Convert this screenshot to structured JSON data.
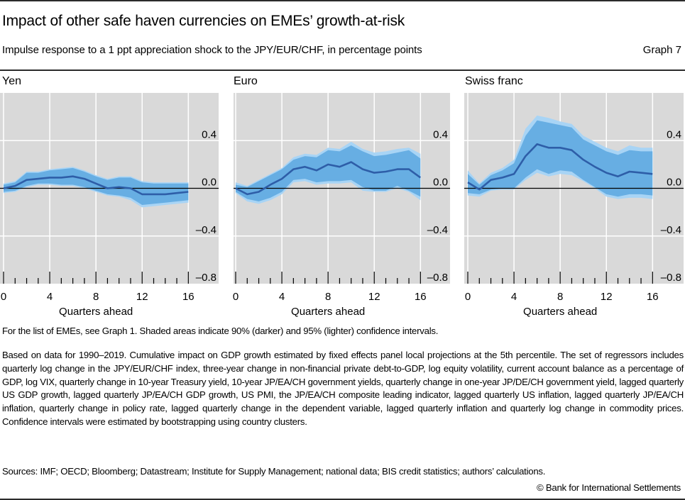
{
  "header": {
    "title": "Impact of other safe haven currencies on EMEs’ growth-at-risk",
    "subtitle": "Impulse response to a 1 ppt appreciation shock to the JPY/EUR/CHF, in percentage points",
    "graph_number": "Graph 7"
  },
  "colors": {
    "plot_background": "#d9d9d9",
    "gridline": "#ffffff",
    "band_95": "#a8d4f5",
    "band_90": "#67aee3",
    "central_line": "#2e5ea8",
    "zero_line": "#000000"
  },
  "chart_data": [
    {
      "type": "area",
      "title": "Yen",
      "xlabel": "Quarters ahead",
      "ylabel": "",
      "x": [
        0,
        1,
        2,
        3,
        4,
        5,
        6,
        7,
        8,
        9,
        10,
        11,
        12,
        13,
        14,
        15,
        16
      ],
      "xticks": [
        0,
        4,
        8,
        12,
        16
      ],
      "xtick_labels": [
        "0",
        "4",
        "8",
        "12",
        "16"
      ],
      "xlim": [
        0,
        19
      ],
      "ylim": [
        -0.8,
        0.8
      ],
      "yticks": [
        0.4,
        0.0,
        -0.4,
        -0.8
      ],
      "ytick_labels": [
        "0.4",
        "0.0",
        "–0.4",
        "–0.8"
      ],
      "ytick_side": "right",
      "grid": true,
      "series": [
        {
          "name": "Central estimate",
          "values": [
            0.0,
            0.02,
            0.07,
            0.08,
            0.09,
            0.09,
            0.1,
            0.08,
            0.04,
            0.0,
            0.01,
            0.0,
            -0.05,
            -0.05,
            -0.05,
            -0.04,
            -0.03
          ]
        },
        {
          "name": "90% CI upper",
          "values": [
            0.03,
            0.05,
            0.13,
            0.13,
            0.15,
            0.16,
            0.17,
            0.14,
            0.1,
            0.07,
            0.09,
            0.09,
            0.05,
            0.04,
            0.04,
            0.04,
            0.04
          ]
        },
        {
          "name": "90% CI lower",
          "values": [
            -0.03,
            -0.02,
            0.02,
            0.04,
            0.04,
            0.03,
            0.03,
            0.01,
            -0.02,
            -0.05,
            -0.06,
            -0.08,
            -0.14,
            -0.13,
            -0.12,
            -0.11,
            -0.1
          ]
        },
        {
          "name": "95% CI upper",
          "values": [
            0.04,
            0.06,
            0.14,
            0.14,
            0.16,
            0.17,
            0.18,
            0.15,
            0.11,
            0.08,
            0.1,
            0.1,
            0.06,
            0.05,
            0.05,
            0.05,
            0.05
          ]
        },
        {
          "name": "95% CI lower",
          "values": [
            -0.04,
            -0.03,
            0.01,
            0.03,
            0.03,
            0.02,
            0.02,
            0.0,
            -0.03,
            -0.06,
            -0.07,
            -0.1,
            -0.16,
            -0.15,
            -0.14,
            -0.13,
            -0.12
          ]
        }
      ]
    },
    {
      "type": "area",
      "title": "Euro",
      "xlabel": "Quarters ahead",
      "ylabel": "",
      "x": [
        0,
        1,
        2,
        3,
        4,
        5,
        6,
        7,
        8,
        9,
        10,
        11,
        12,
        13,
        14,
        15,
        16
      ],
      "xticks": [
        0,
        4,
        8,
        12,
        16
      ],
      "xtick_labels": [
        "0",
        "4",
        "8",
        "12",
        "16"
      ],
      "xlim": [
        0,
        19
      ],
      "ylim": [
        -0.8,
        0.8
      ],
      "yticks": [
        0.4,
        0.0,
        -0.4,
        -0.8
      ],
      "ytick_labels": [
        "0.4",
        "0.0",
        "–0.4",
        "–0.8"
      ],
      "ytick_side": "right",
      "grid": true,
      "series": [
        {
          "name": "Central estimate",
          "values": [
            0.0,
            -0.05,
            -0.03,
            0.03,
            0.08,
            0.16,
            0.18,
            0.15,
            0.2,
            0.18,
            0.22,
            0.16,
            0.13,
            0.14,
            0.16,
            0.16,
            0.09
          ]
        },
        {
          "name": "90% CI upper",
          "values": [
            0.03,
            0.01,
            0.06,
            0.11,
            0.16,
            0.24,
            0.27,
            0.26,
            0.32,
            0.31,
            0.36,
            0.31,
            0.27,
            0.28,
            0.3,
            0.32,
            0.25
          ]
        },
        {
          "name": "90% CI lower",
          "values": [
            -0.03,
            -0.09,
            -0.11,
            -0.08,
            -0.03,
            0.07,
            0.08,
            0.05,
            0.06,
            0.06,
            0.07,
            0.01,
            -0.02,
            -0.02,
            0.02,
            -0.02,
            -0.07
          ]
        },
        {
          "name": "95% CI upper",
          "values": [
            0.05,
            0.02,
            0.07,
            0.12,
            0.17,
            0.26,
            0.29,
            0.28,
            0.34,
            0.33,
            0.39,
            0.33,
            0.3,
            0.31,
            0.33,
            0.34,
            0.29
          ]
        },
        {
          "name": "95% CI lower",
          "values": [
            -0.04,
            -0.11,
            -0.13,
            -0.1,
            -0.05,
            0.05,
            0.06,
            0.03,
            0.04,
            0.04,
            0.05,
            -0.02,
            -0.03,
            -0.03,
            0.0,
            -0.03,
            -0.1
          ]
        }
      ]
    },
    {
      "type": "area",
      "title": "Swiss franc",
      "xlabel": "Quarters ahead",
      "ylabel": "",
      "x": [
        0,
        1,
        2,
        3,
        4,
        5,
        6,
        7,
        8,
        9,
        10,
        11,
        12,
        13,
        14,
        15,
        16
      ],
      "xticks": [
        0,
        4,
        8,
        12,
        16
      ],
      "xtick_labels": [
        "0",
        "4",
        "8",
        "12",
        "16"
      ],
      "xlim": [
        0,
        19
      ],
      "ylim": [
        -0.8,
        0.8
      ],
      "yticks": [
        0.4,
        0.0,
        -0.4,
        -0.8
      ],
      "ytick_labels": [
        "0.4",
        "0.0",
        "–0.4",
        "–0.8"
      ],
      "ytick_side": "right",
      "grid": true,
      "series": [
        {
          "name": "Central estimate",
          "values": [
            0.05,
            -0.01,
            0.07,
            0.09,
            0.12,
            0.27,
            0.37,
            0.34,
            0.34,
            0.32,
            0.24,
            0.18,
            0.13,
            0.1,
            0.14,
            0.13,
            0.12
          ]
        },
        {
          "name": "90% CI upper",
          "values": [
            0.12,
            0.03,
            0.11,
            0.15,
            0.21,
            0.44,
            0.57,
            0.55,
            0.53,
            0.51,
            0.41,
            0.36,
            0.31,
            0.28,
            0.32,
            0.31,
            0.31
          ]
        },
        {
          "name": "90% CI lower",
          "values": [
            -0.04,
            -0.05,
            -0.01,
            0.0,
            0.0,
            0.09,
            0.16,
            0.12,
            0.15,
            0.14,
            0.07,
            0.01,
            -0.05,
            -0.07,
            -0.05,
            -0.05,
            -0.06
          ]
        },
        {
          "name": "95% CI upper",
          "values": [
            0.15,
            0.04,
            0.13,
            0.17,
            0.24,
            0.5,
            0.61,
            0.59,
            0.56,
            0.54,
            0.44,
            0.39,
            0.34,
            0.31,
            0.36,
            0.34,
            0.34
          ]
        },
        {
          "name": "95% CI lower",
          "values": [
            -0.06,
            -0.07,
            -0.02,
            -0.01,
            -0.01,
            0.07,
            0.13,
            0.1,
            0.12,
            0.11,
            0.06,
            0.0,
            -0.07,
            -0.09,
            -0.08,
            -0.08,
            -0.09
          ]
        }
      ]
    }
  ],
  "notes": {
    "note_1": "For the list of EMEs, see Graph 1. Shaded areas indicate 90% (darker) and 95% (lighter) confidence intervals.",
    "note_2": "Based on data for 1990–2019. Cumulative impact on GDP growth estimated by fixed effects panel local projections at the 5th percentile. The set of regressors includes quarterly log change in the JPY/EUR/CHF index, three-year change in non-financial private debt-to-GDP, log equity volatility, current account balance as a percentage of GDP, log VIX, quarterly change in 10-year Treasury yield, 10-year JP/EA/CH government yields, quarterly change in one-year JP/DE/CH government yield, lagged quarterly US GDP growth, lagged quarterly JP/EA/CH GDP growth, US PMI, the JP/EA/CH composite leading indicator, lagged quarterly US inflation, lagged quarterly JP/EA/CH inflation, quarterly change in policy rate, lagged quarterly change in the dependent variable, lagged quarterly inflation and quarterly log change in commodity prices. Confidence intervals were estimated by bootstrapping using country clusters.",
    "sources": "Sources: IMF; OECD; Bloomberg; Datastream; Institute for Supply Management; national data; BIS credit statistics; authors’ calculations.",
    "copyright": "© Bank for International Settlements"
  }
}
